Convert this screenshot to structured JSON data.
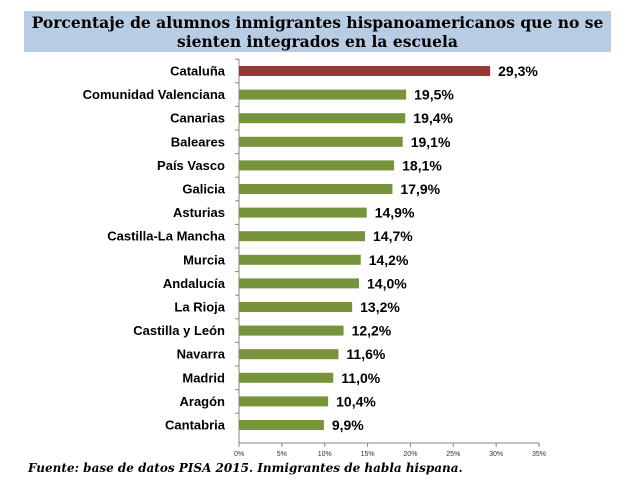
{
  "chart_data": {
    "type": "bar",
    "orientation": "horizontal",
    "title": "Porcentaje de alumnos inmigrantes hispanoamericanos que no se sienten integrados en la escuela",
    "categories": [
      "Cataluña",
      "Comunidad Valenciana",
      "Canarias",
      "Baleares",
      "País Vasco",
      "Galicia",
      "Asturias",
      "Castilla-La Mancha",
      "Murcia",
      "Andalucía",
      "La Rioja",
      "Castilla y León",
      "Navarra",
      "Madrid",
      "Aragón",
      "Cantabria"
    ],
    "values": [
      29.3,
      19.5,
      19.4,
      19.1,
      18.1,
      17.9,
      14.9,
      14.7,
      14.2,
      14.0,
      13.2,
      12.2,
      11.6,
      11.0,
      10.4,
      9.9
    ],
    "value_labels": [
      "29,3%",
      "19,5%",
      "19,4%",
      "19,1%",
      "18,1%",
      "17,9%",
      "14,9%",
      "14,7%",
      "14,2%",
      "14,0%",
      "13,2%",
      "12,2%",
      "11,6%",
      "11,0%",
      "10,4%",
      "9,9%"
    ],
    "xlim": [
      0,
      35
    ],
    "xticks": [
      0,
      5,
      10,
      15,
      20,
      25,
      30,
      35
    ],
    "xtick_labels": [
      "0%",
      "5%",
      "10%",
      "15%",
      "20%",
      "25%",
      "30%",
      "35%"
    ],
    "colors": {
      "highlight": "#953735",
      "default": "#77933c"
    },
    "highlight_index": 0,
    "xlabel": "",
    "ylabel": "",
    "grid": false,
    "legend": "none"
  },
  "source": "Fuente: base de datos PISA 2015. Inmigrantes de habla hispana."
}
